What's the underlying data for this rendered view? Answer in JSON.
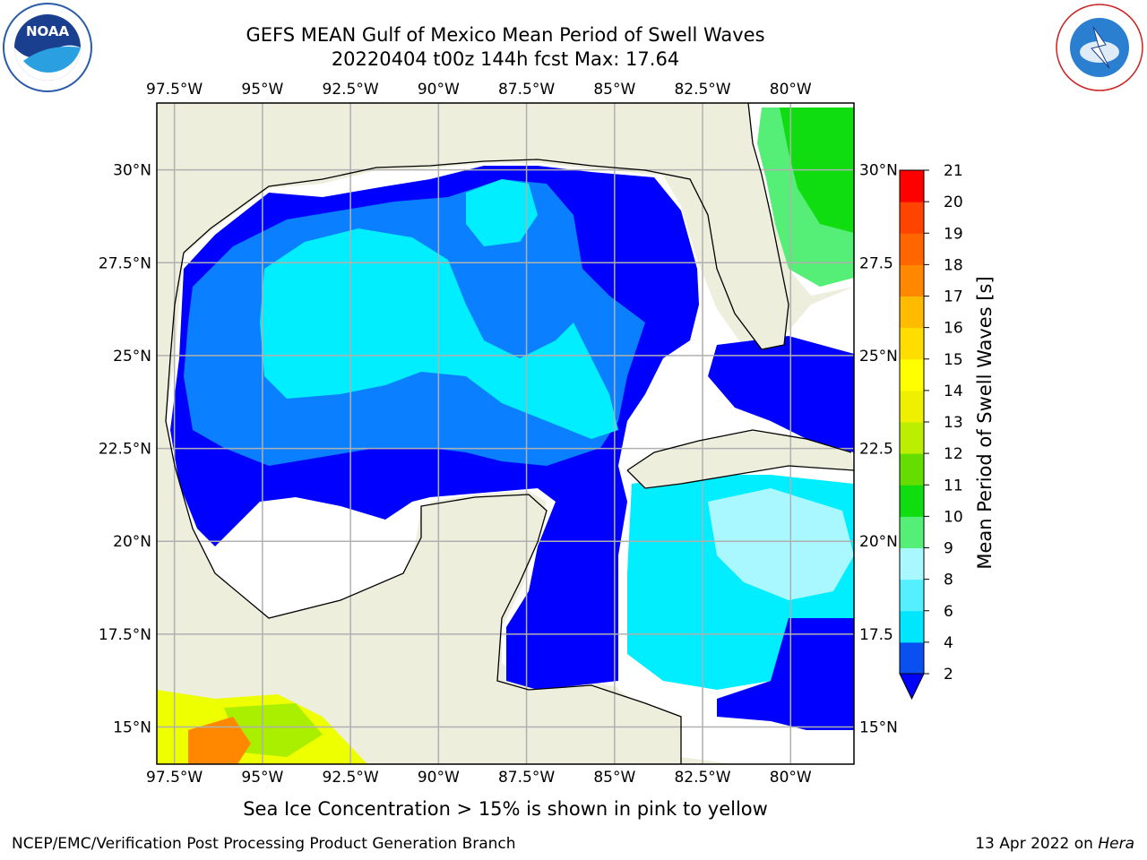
{
  "header": {
    "title_line1": "GEFS MEAN Gulf of Mexico Mean Period of Swell Waves",
    "title_line2": "20220404 t00z 144h fcst   Max: 17.64"
  },
  "map": {
    "lon_labels": [
      "97.5°W",
      "95°W",
      "92.5°W",
      "90°W",
      "87.5°W",
      "85°W",
      "82.5°W",
      "80°W"
    ],
    "lat_labels_left": [
      "30°N",
      "27.5°N",
      "25°N",
      "22.5°N",
      "20°N",
      "17.5°N",
      "15°N"
    ],
    "lat_labels_right": [
      "30°N",
      "27.5",
      "25°N",
      "22.5",
      "20°N",
      "17.5",
      "15°N"
    ],
    "extent": {
      "lon_min": -98,
      "lon_max": -78.2,
      "lat_min": 14,
      "lat_max": 31.8
    },
    "colors": {
      "land": "#eeeedd",
      "ocean": "#ffffff",
      "grid": "#b0b0b0",
      "coast": "#000000"
    }
  },
  "colorbar": {
    "label": "Mean Period of Swell Waves [s]",
    "ticks": [
      "2",
      "4",
      "6",
      "8",
      "9",
      "10",
      "11",
      "12",
      "13",
      "14",
      "15",
      "16",
      "17",
      "18",
      "19",
      "20",
      "21"
    ],
    "colors": [
      "#0a50f0",
      "#00e6ff",
      "#55f0ff",
      "#aaf8ff",
      "#55ee77",
      "#10dd10",
      "#66dd00",
      "#bbee00",
      "#eef000",
      "#ffff00",
      "#ffdd00",
      "#ffbb00",
      "#ff8800",
      "#ff6600",
      "#ff4400",
      "#ff0000"
    ],
    "extend_color": "#0000ff"
  },
  "caption": "Sea Ice Concentration > 15% is shown in pink to yellow",
  "footer": {
    "left": "NCEP/EMC/Verification Post Processing Product Generation Branch",
    "date": "13 Apr 2022 on",
    "host": "Hera"
  },
  "logos": {
    "noaa_text": "NOAA",
    "noaa_ring_text": "NATIONAL OCEANIC AND ATMOSPHERIC ADMINISTRATION",
    "nws_ring_text": "NATIONAL WEATHER SERVICE"
  }
}
